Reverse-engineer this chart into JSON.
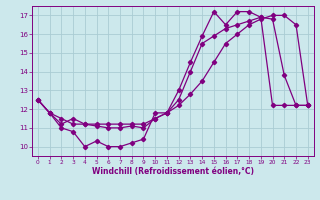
{
  "xlabel": "Windchill (Refroidissement éolien,°C)",
  "bg_color": "#cce8ec",
  "line_color": "#800080",
  "grid_color": "#aaccd4",
  "xlim": [
    -0.5,
    23.5
  ],
  "ylim": [
    9.5,
    17.5
  ],
  "xticks": [
    0,
    1,
    2,
    3,
    4,
    5,
    6,
    7,
    8,
    9,
    10,
    11,
    12,
    13,
    14,
    15,
    16,
    17,
    18,
    19,
    20,
    21,
    22,
    23
  ],
  "yticks": [
    10,
    11,
    12,
    13,
    14,
    15,
    16,
    17
  ],
  "line1_x": [
    0,
    1,
    2,
    3,
    4,
    5,
    6,
    7,
    8,
    9,
    10,
    11,
    12,
    13,
    14,
    15,
    16,
    17,
    18,
    19,
    20,
    21,
    22,
    23
  ],
  "line1_y": [
    12.5,
    11.8,
    11.0,
    10.8,
    10.0,
    10.3,
    10.0,
    10.0,
    10.2,
    10.4,
    11.8,
    11.8,
    13.0,
    14.5,
    15.9,
    17.2,
    16.5,
    17.2,
    17.2,
    16.9,
    12.2,
    12.2,
    12.2,
    12.2
  ],
  "line2_x": [
    0,
    1,
    2,
    3,
    4,
    5,
    6,
    7,
    8,
    9,
    10,
    11,
    12,
    13,
    14,
    15,
    16,
    17,
    18,
    19,
    20,
    21,
    22,
    23
  ],
  "line2_y": [
    12.5,
    11.8,
    11.2,
    11.5,
    11.2,
    11.1,
    11.0,
    11.0,
    11.1,
    11.0,
    11.5,
    11.8,
    12.5,
    14.0,
    15.5,
    15.9,
    16.3,
    16.5,
    16.7,
    16.9,
    16.8,
    13.8,
    12.2,
    12.2
  ],
  "line3_x": [
    0,
    1,
    2,
    3,
    4,
    5,
    6,
    7,
    8,
    9,
    10,
    11,
    12,
    13,
    14,
    15,
    16,
    17,
    18,
    19,
    20,
    21,
    22,
    23
  ],
  "line3_y": [
    12.5,
    11.8,
    11.5,
    11.2,
    11.2,
    11.2,
    11.2,
    11.2,
    11.2,
    11.2,
    11.5,
    11.8,
    12.2,
    12.8,
    13.5,
    14.5,
    15.5,
    16.0,
    16.5,
    16.8,
    17.0,
    17.0,
    16.5,
    12.2
  ]
}
